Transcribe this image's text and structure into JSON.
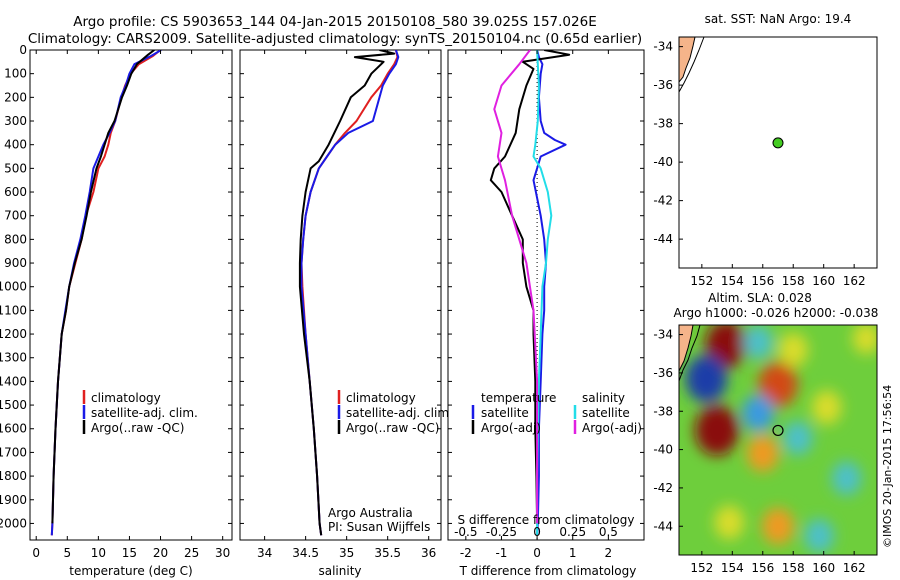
{
  "header": {
    "line1": "Argo profile: CS 5903653_144 04-Jan-2015 20150108_580 39.025S 157.026E",
    "line2": "Climatology: CARS2009. Satellite-adjusted climatology: synTS_20150104.nc (0.65d earlier)"
  },
  "colors": {
    "climatology": "#e02020",
    "satellite": "#1a1ae6",
    "argo": "#000000",
    "sat_salinity": "#22dde8",
    "argo_adj_salinity": "#e020e0",
    "land": "#f5b48a",
    "float_marker": "#44cc22"
  },
  "chart_data": [
    {
      "type": "line",
      "name": "temperature-profile",
      "xlabel": "temperature (deg C)",
      "ylabel": "",
      "xlim": [
        -1,
        31.5
      ],
      "ylim": [
        2070,
        0
      ],
      "xticks": [
        0,
        5,
        10,
        15,
        20,
        25,
        30
      ],
      "yticks": [
        0,
        100,
        200,
        300,
        400,
        500,
        600,
        700,
        800,
        900,
        1000,
        1100,
        1200,
        1300,
        1400,
        1500,
        1600,
        1700,
        1800,
        1900,
        2000
      ],
      "legend": [
        "climatology",
        "satellite-adj. clim.",
        "Argo(..raw -QC)"
      ],
      "series": [
        {
          "name": "climatology",
          "color": "#e02020",
          "x": [
            20.0,
            18.8,
            16.5,
            15.2,
            14.3,
            13.7,
            12.7,
            12.0,
            11.6,
            11.0,
            10.0,
            9.2,
            8.0,
            7.3,
            6.3,
            5.3,
            4.8,
            4.1,
            3.5,
            3.1,
            2.8,
            2.6,
            2.5
          ],
          "y": [
            0,
            25,
            60,
            100,
            150,
            200,
            300,
            350,
            400,
            450,
            500,
            600,
            700,
            800,
            900,
            1000,
            1100,
            1200,
            1400,
            1600,
            1800,
            2000,
            2050
          ]
        },
        {
          "name": "satellite-adj. clim.",
          "color": "#1a1ae6",
          "x": [
            20.1,
            18.5,
            15.8,
            15.0,
            14.4,
            13.6,
            12.7,
            11.8,
            10.8,
            10.0,
            9.2,
            8.6,
            7.9,
            7.1,
            6.1,
            5.3,
            4.7,
            4.1,
            3.5,
            3.1,
            2.8,
            2.6,
            2.5
          ],
          "y": [
            0,
            25,
            60,
            100,
            150,
            200,
            300,
            350,
            400,
            450,
            500,
            600,
            700,
            800,
            900,
            1000,
            1100,
            1200,
            1400,
            1600,
            1800,
            2000,
            2050
          ]
        },
        {
          "name": "Argo(..raw -QC)",
          "color": "#000000",
          "x": [
            19.0,
            18.0,
            16.2,
            15.3,
            14.6,
            13.8,
            12.6,
            11.6,
            11.0,
            10.4,
            9.7,
            8.8,
            8.1,
            7.3,
            6.2,
            5.3,
            4.8,
            4.1,
            3.5,
            3.1,
            2.8,
            2.6
          ],
          "y": [
            0,
            20,
            60,
            100,
            150,
            200,
            300,
            350,
            400,
            450,
            500,
            600,
            700,
            800,
            900,
            1000,
            1100,
            1200,
            1400,
            1600,
            1800,
            2000
          ]
        }
      ]
    },
    {
      "type": "line",
      "name": "salinity-profile",
      "xlabel": "salinity",
      "ylabel": "",
      "xlim": [
        33.7,
        36.15
      ],
      "ylim": [
        2070,
        0
      ],
      "xticks": [
        34,
        34.5,
        35,
        35.5,
        36
      ],
      "xticklabels": [
        "34",
        "34.5",
        "35",
        "35.5",
        "36"
      ],
      "legend": [
        "climatology",
        "satellite-adj. clim.",
        "Argo(..raw -QC)"
      ],
      "annotation": [
        "Argo Australia",
        "PI: Susan Wijffels"
      ],
      "series": [
        {
          "name": "climatology",
          "color": "#e02020",
          "x": [
            35.6,
            35.62,
            35.58,
            35.5,
            35.42,
            35.3,
            35.12,
            34.98,
            34.86,
            34.76,
            34.66,
            34.56,
            34.5,
            34.47,
            34.45,
            34.46,
            34.5,
            34.55,
            34.6,
            34.64,
            34.67,
            34.69
          ],
          "y": [
            0,
            30,
            60,
            100,
            150,
            200,
            300,
            350,
            400,
            450,
            500,
            600,
            700,
            800,
            900,
            1000,
            1200,
            1400,
            1600,
            1800,
            2000,
            2050
          ]
        },
        {
          "name": "satellite-adj. clim.",
          "color": "#1a1ae6",
          "x": [
            35.6,
            35.63,
            35.6,
            35.52,
            35.44,
            35.4,
            35.32,
            35.02,
            34.86,
            34.76,
            34.66,
            34.56,
            34.5,
            34.47,
            34.45,
            34.45,
            34.5,
            34.55,
            34.6,
            34.64,
            34.67,
            34.69
          ],
          "y": [
            0,
            30,
            60,
            100,
            150,
            200,
            300,
            350,
            400,
            450,
            500,
            600,
            700,
            800,
            900,
            1000,
            1200,
            1400,
            1600,
            1800,
            2000,
            2050
          ]
        },
        {
          "name": "Argo(..raw -QC)",
          "color": "#000000",
          "x": [
            35.4,
            35.58,
            35.1,
            35.45,
            35.3,
            35.22,
            35.05,
            34.92,
            34.78,
            34.66,
            34.56,
            34.5,
            34.46,
            34.44,
            34.43,
            34.43,
            34.48,
            34.55,
            34.6,
            34.64,
            34.67,
            34.69
          ],
          "y": [
            0,
            15,
            30,
            50,
            100,
            150,
            200,
            300,
            400,
            470,
            500,
            600,
            700,
            800,
            900,
            1000,
            1200,
            1400,
            1600,
            1800,
            2000,
            2050
          ]
        }
      ]
    },
    {
      "type": "line",
      "name": "difference-profile",
      "xlabel": "T difference from climatology",
      "xlabel_top": "S difference from climatology",
      "xlim": [
        -2.5,
        3.0
      ],
      "ylim": [
        2070,
        0
      ],
      "xticks": [
        -2,
        -1,
        0,
        1,
        2
      ],
      "xticklabels": [
        "-2",
        "-1",
        "0",
        "1",
        "2"
      ],
      "sticks_label": [
        "-0.5",
        "-0.25",
        "0",
        "0.25",
        "0.5"
      ],
      "sticks_value": [
        -2,
        -1,
        0,
        1,
        2
      ],
      "legend_left": {
        "title": "temperature",
        "items": [
          "satellite",
          "Argo(-adj)"
        ]
      },
      "legend_right": {
        "title": "salinity",
        "items": [
          "satellite",
          "Argo(-adj)"
        ]
      },
      "series": [
        {
          "name": "T satellite",
          "color": "#1a1ae6",
          "x": [
            0.0,
            0.05,
            0.15,
            0.1,
            0.05,
            0.1,
            0.2,
            0.5,
            0.8,
            0.1,
            -0.1,
            0.1,
            0.2,
            0.25,
            0.2,
            0.2,
            0.15,
            0.1,
            0.05,
            0.05,
            0.02,
            0.0
          ],
          "y": [
            0,
            30,
            60,
            100,
            200,
            300,
            350,
            380,
            400,
            450,
            550,
            700,
            800,
            900,
            1000,
            1100,
            1200,
            1400,
            1600,
            1800,
            2000,
            2050
          ]
        },
        {
          "name": "T Argo(-adj)",
          "color": "#000000",
          "x": [
            0.2,
            0.9,
            -0.4,
            -0.1,
            -0.3,
            -0.5,
            -0.6,
            -0.9,
            -1.2,
            -1.3,
            -1.0,
            -0.7,
            -0.4,
            -0.4,
            -0.3,
            -0.1,
            -0.1,
            -0.05,
            -0.05,
            -0.02,
            0.0
          ],
          "y": [
            0,
            20,
            50,
            80,
            150,
            250,
            350,
            450,
            500,
            550,
            600,
            700,
            800,
            900,
            1000,
            1100,
            1200,
            1400,
            1600,
            1800,
            2000
          ]
        },
        {
          "name": "S satellite",
          "color": "#22dde8",
          "x": [
            0.0,
            0.02,
            0.05,
            0.02,
            -0.05,
            -0.1,
            0.1,
            0.3,
            0.4,
            0.3,
            0.25,
            0.15,
            0.1,
            0.05,
            0.0,
            0.0
          ],
          "y": [
            0,
            60,
            150,
            300,
            400,
            450,
            500,
            600,
            700,
            800,
            900,
            1000,
            1200,
            1400,
            1800,
            2050
          ]
        },
        {
          "name": "S Argo(-adj)",
          "color": "#e020e0",
          "x": [
            -0.2,
            -0.5,
            -1.0,
            -1.2,
            -1.0,
            -1.1,
            -0.9,
            -0.7,
            -0.3,
            -0.1,
            0.0,
            0.0
          ],
          "y": [
            0,
            60,
            150,
            250,
            350,
            450,
            550,
            700,
            900,
            1100,
            1400,
            2000
          ]
        }
      ]
    },
    {
      "type": "scatter",
      "name": "location-map",
      "title": "sat. SST: NaN Argo: 19.4",
      "xlim": [
        150.5,
        163.5
      ],
      "ylim": [
        -45.5,
        -33.5
      ],
      "xticks": [
        152,
        154,
        156,
        158,
        160,
        162
      ],
      "yticks": [
        -34,
        -36,
        -38,
        -40,
        -42,
        -44
      ],
      "x": [
        157.0
      ],
      "y": [
        -39.0
      ]
    },
    {
      "type": "heatmap",
      "name": "altimetry-map",
      "title1": "Altim. SLA: 0.028",
      "title2": "Argo h1000: -0.026 h2000: -0.038",
      "xlim": [
        150.5,
        163.5
      ],
      "ylim": [
        -45.5,
        -33.5
      ],
      "xticks": [
        152,
        154,
        156,
        158,
        160,
        162
      ],
      "yticks": [
        -34,
        -36,
        -38,
        -40,
        -42,
        -44
      ],
      "x": [
        157.0
      ],
      "y": [
        -39.0
      ],
      "eddies": [
        {
          "lon": 153.6,
          "lat": -34.5,
          "value": 0.9
        },
        {
          "lon": 152.3,
          "lat": -36.3,
          "value": -0.9
        },
        {
          "lon": 155.7,
          "lat": -34.4,
          "value": -0.4
        },
        {
          "lon": 158.0,
          "lat": -34.8,
          "value": 0.4
        },
        {
          "lon": 157.0,
          "lat": -36.6,
          "value": 0.8
        },
        {
          "lon": 153.0,
          "lat": -39.0,
          "value": 1.0
        },
        {
          "lon": 155.7,
          "lat": -38.1,
          "value": -0.5
        },
        {
          "lon": 156.0,
          "lat": -40.2,
          "value": 0.5
        },
        {
          "lon": 158.3,
          "lat": -39.4,
          "value": -0.4
        },
        {
          "lon": 160.2,
          "lat": -37.8,
          "value": 0.4
        },
        {
          "lon": 161.5,
          "lat": -41.5,
          "value": -0.4
        },
        {
          "lon": 153.8,
          "lat": -43.8,
          "value": 0.4
        },
        {
          "lon": 157.0,
          "lat": -44.0,
          "value": 0.5
        },
        {
          "lon": 159.7,
          "lat": -44.5,
          "value": -0.4
        },
        {
          "lon": 162.8,
          "lat": -34.2,
          "value": 0.3
        }
      ]
    }
  ],
  "credit": "©IMOS 20-Jan-2015 17:56:54"
}
